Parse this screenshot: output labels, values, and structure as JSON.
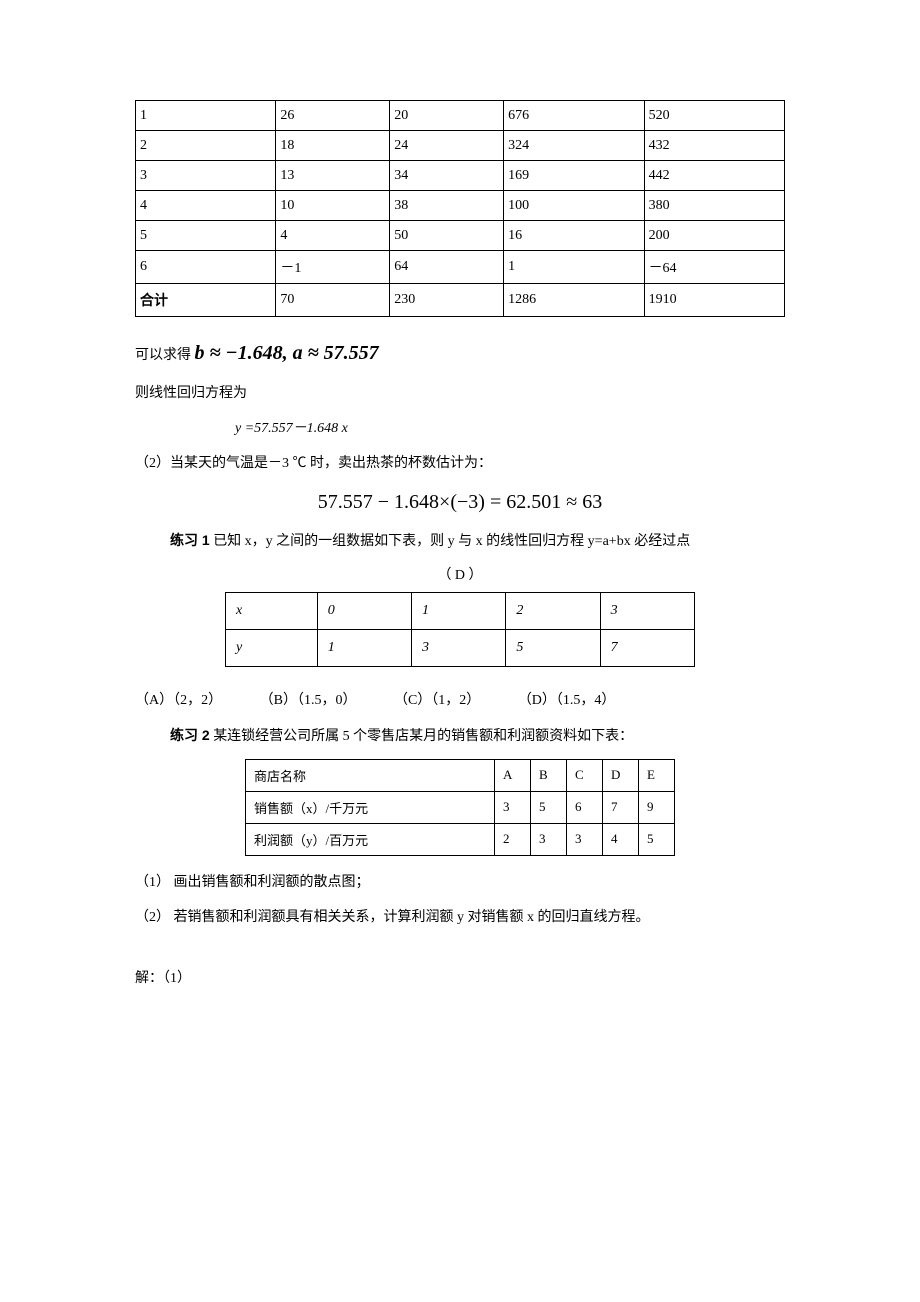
{
  "table1": {
    "rows": [
      [
        "1",
        "26",
        "20",
        "676",
        "520"
      ],
      [
        "2",
        "18",
        "24",
        "324",
        "432"
      ],
      [
        "3",
        "13",
        "34",
        "169",
        "442"
      ],
      [
        "4",
        "10",
        "38",
        "100",
        "380"
      ],
      [
        "5",
        "4",
        "50",
        "16",
        "200"
      ],
      [
        "6",
        "－1",
        "64",
        "1",
        "－64"
      ],
      [
        "合计",
        "70",
        "230",
        "1286",
        "1910"
      ]
    ]
  },
  "text": {
    "canGet": "可以求得 ",
    "coef": "b ≈ −1.648, a ≈ 57.557",
    "thenEq": "则线性回归方程为",
    "eq1": "y =57.557－1.648 x",
    "q2": "（2）当某天的气温是－3 ℃ 时，卖出热茶的杯数估计为：",
    "eq2": "57.557 − 1.648×(−3) = 62.501 ≈ 63",
    "p1Label": "练习 1",
    "p1Text": " 已知 x，y 之间的一组数据如下表，则 y 与 x 的线性回归方程 y=a+bx 必经过点",
    "p1Answer": "（   D    ）",
    "options": {
      "A": "（A）（2，2）",
      "B": "（B）（1.5，0）",
      "C": "（C）（1，2）",
      "D": "（D）（1.5，4）"
    },
    "p2Label": "练习 2",
    "p2Text": " 某连锁经营公司所属 5 个零售店某月的销售额和利润额资料如下表：",
    "q2_1": "（1） 画出销售额和利润额的散点图；",
    "q2_2": "（2） 若销售额和利润额具有相关关系，计算利润额 y 对销售额 x 的回归直线方程。",
    "sol": "解：（1）"
  },
  "table2": {
    "headerX": "x",
    "headerY": "y",
    "x": [
      "0",
      "1",
      "2",
      "3"
    ],
    "y": [
      "1",
      "3",
      "5",
      "7"
    ]
  },
  "table3": {
    "rows": [
      [
        "商店名称",
        "A",
        "B",
        "C",
        "D",
        "E"
      ],
      [
        "销售额（x）/千万元",
        "3",
        "5",
        "6",
        "7",
        "9"
      ],
      [
        "利润额（y）/百万元",
        "2",
        "3",
        "3",
        "4",
        "5"
      ]
    ]
  }
}
